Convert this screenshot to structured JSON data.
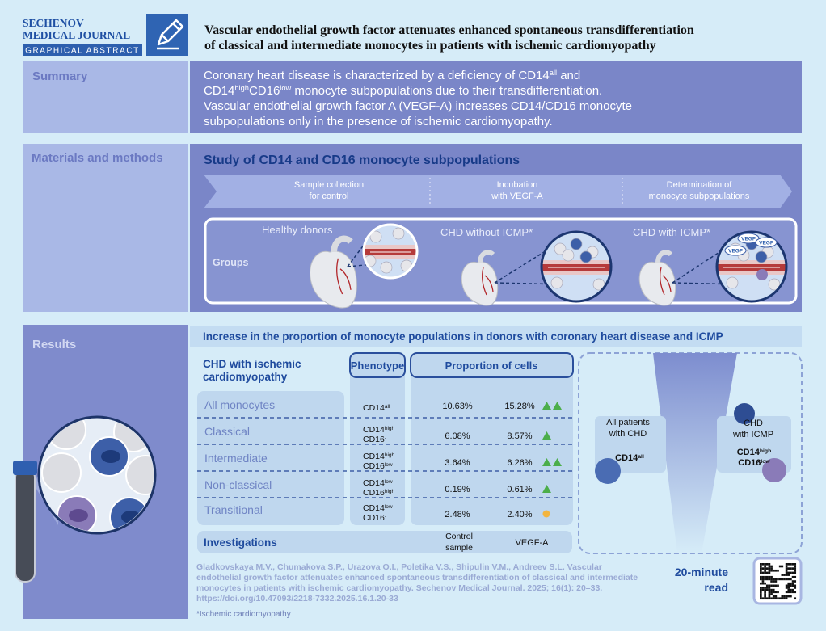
{
  "header": {
    "journal_lines": [
      "SECHENOV",
      "MEDICAL JOURNAL"
    ],
    "badge": "GRAPHICAL ABSTRACT",
    "title_lines": [
      "Vascular endothelial growth factor attenuates enhanced spontaneous transdifferentiation",
      "of classical and intermediate monocytes in patients with ischemic cardiomyopathy"
    ]
  },
  "summary": {
    "label": "Summary",
    "lines": [
      [
        "Coronary heart disease is characterized by a deficiency of CD14",
        {
          "sup": "all"
        },
        " and"
      ],
      [
        "CD14",
        {
          "sup": "high"
        },
        "CD16",
        {
          "sup": "low"
        },
        "  monocyte subpopulations due to their transdifferentiation."
      ],
      [
        "Vascular endothelial growth factor A (VEGF-A) increases CD14/CD16 monocyte"
      ],
      [
        "subpopulations only in the presence of ischemic cardiomyopathy."
      ]
    ]
  },
  "methods": {
    "label": "Materials and methods",
    "title": "Study of CD14 and CD16 monocyte subpopulations",
    "steps": [
      [
        "Sample collection",
        "for control"
      ],
      [
        "Incubation",
        "with VEGF-A"
      ],
      [
        "Determination of",
        "monocyte subpopulations"
      ]
    ],
    "groups_label": "Groups",
    "groups": [
      "Healthy donors",
      "CHD without ICMP*",
      "CHD with ICMP*"
    ],
    "vegf_badge": "VEGF"
  },
  "results": {
    "label": "Results",
    "heading": "Increase in the proportion of monocyte populations in donors with coronary heart disease and ICMP",
    "subtitle": [
      "CHD with ischemic",
      "cardiomyopathy"
    ],
    "columns": {
      "phenotype": "Phenotype",
      "proportion": "Proportion of cells"
    },
    "rows": [
      {
        "name": "All monocytes",
        "phenotype": [
          [
            "CD14",
            {
              "sup": "all"
            }
          ]
        ],
        "control": "10.63%",
        "vegf": "15.28%"
      },
      {
        "name": "Classical",
        "phenotype": [
          [
            "CD14",
            {
              "sup": "high"
            }
          ],
          [
            "CD16",
            {
              "sup": "-"
            }
          ]
        ],
        "control": "6.08%",
        "vegf": "8.57%"
      },
      {
        "name": "Intermediate",
        "phenotype": [
          [
            "CD14",
            {
              "sup": "high"
            }
          ],
          [
            "CD16",
            {
              "sup": "low"
            }
          ]
        ],
        "control": "3.64%",
        "vegf": "6.26%"
      },
      {
        "name": "Non-classical",
        "phenotype": [
          [
            "CD14",
            {
              "sup": "low"
            }
          ],
          [
            "CD16",
            {
              "sup": "high"
            }
          ]
        ],
        "control": "0.19%",
        "vegf": "0.61%"
      },
      {
        "name": "Transitional",
        "phenotype": [
          [
            "CD14",
            {
              "sup": "low"
            }
          ],
          [
            "CD16",
            {
              "sup": "-"
            }
          ]
        ],
        "control": "2.48%",
        "vegf": "2.40%"
      }
    ],
    "investigations": {
      "label": "Investigations",
      "control": [
        "Control",
        "sample"
      ],
      "vegf": "VEGF-A"
    },
    "comparison": {
      "left": {
        "label": [
          "All patients",
          "with CHD"
        ],
        "marker": [
          [
            "CD14",
            {
              "sup": "all"
            }
          ]
        ]
      },
      "right": {
        "label": [
          "CHD",
          "with ICMP"
        ],
        "marker": [
          [
            "CD14",
            {
              "sup": "high"
            }
          ],
          [
            "CD16",
            {
              "sup": "low"
            }
          ]
        ]
      }
    }
  },
  "citation": {
    "lines": [
      "Gladkovskaya M.V., Chumakova S.P., Urazova O.I., Poletika V.S., Shipulin V.M., Andreev S.L. Vascular",
      "endothelial growth factor attenuates enhanced spontaneous transdifferentiation of classical and intermediate",
      "monocytes in patients with ischemic cardiomyopathy. Sechenov Medical Journal. 2025; 16(1): 20–33.",
      "https://doi.org/10.47093/2218-7332.2025.16.1.20-33"
    ]
  },
  "read_time": [
    "20-minute",
    "read"
  ],
  "footnote": "*Ischemic cardiomyopathy"
}
